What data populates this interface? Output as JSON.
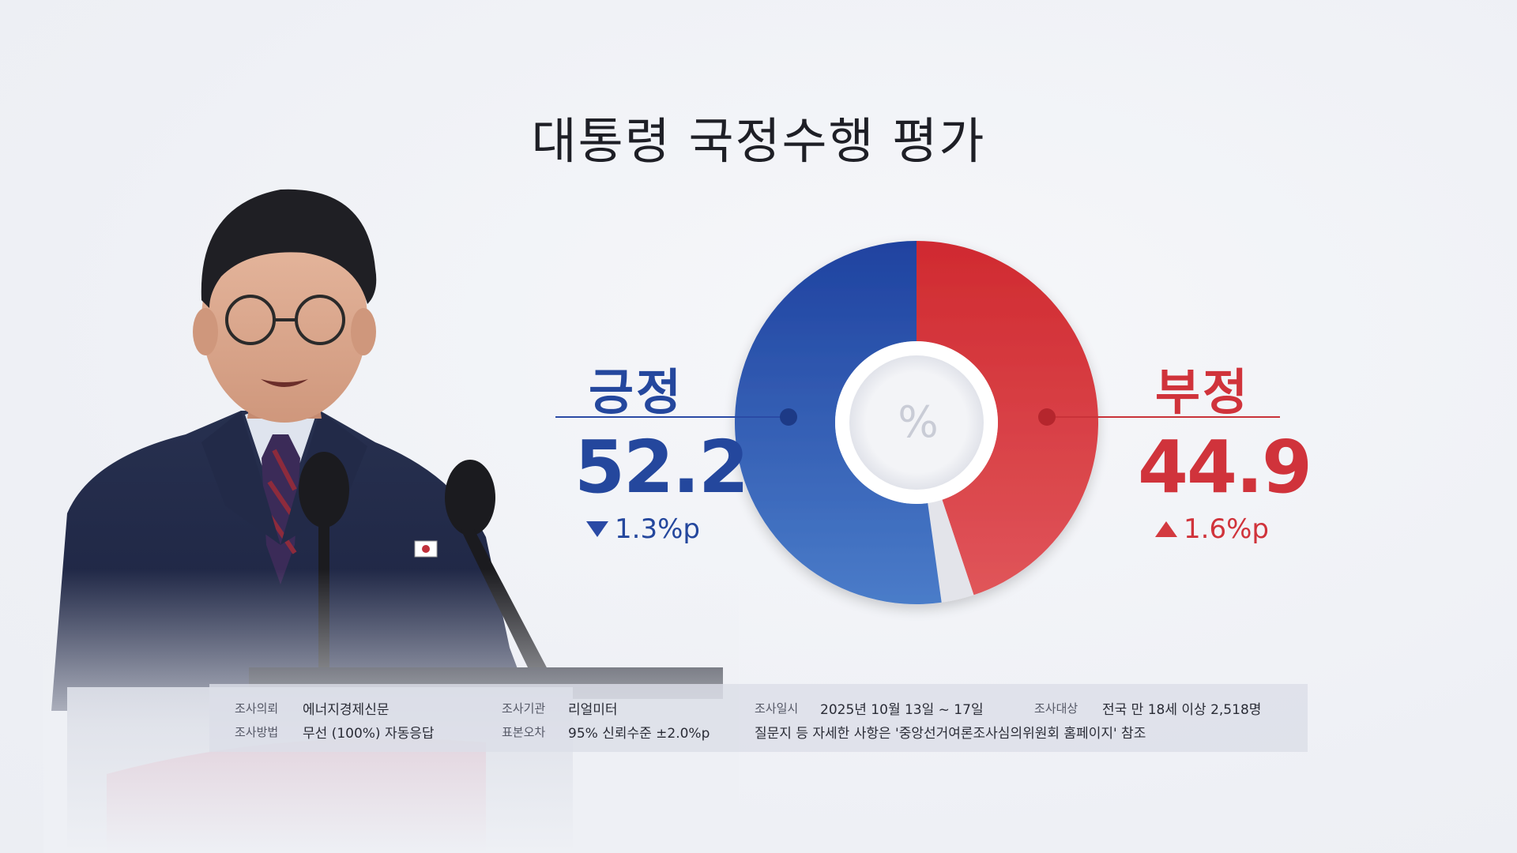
{
  "title": "대통령 국정수행 평가",
  "chart_data": {
    "type": "pie",
    "style": "donut",
    "title": "대통령 국정수행 평가",
    "center_label": "%",
    "slices": [
      {
        "name": "긍정",
        "value": 52.2,
        "change": "1.3%p",
        "direction": "down",
        "color": "#2d52b0"
      },
      {
        "name": "부정",
        "value": 44.9,
        "change": "1.6%p",
        "direction": "up",
        "color": "#d8323a"
      },
      {
        "name": "",
        "value": 2.9,
        "color": "#e3e4ea"
      }
    ]
  },
  "labels": {
    "positive": {
      "word": "긍정",
      "value": "52.2",
      "change": "1.3%p"
    },
    "negative": {
      "word": "부정",
      "value": "44.9",
      "change": "1.6%p"
    }
  },
  "info": {
    "sponsor_key": "조사의뢰",
    "sponsor_val": "에너지경제신문",
    "agency_key": "조사기관",
    "agency_val": "리얼미터",
    "date_key": "조사일시",
    "date_val": "2025년 10월 13일 ~ 17일",
    "target_key": "조사대상",
    "target_val": "전국 만 18세 이상 2,518명",
    "method_key": "조사방법",
    "method_val": "무선 (100%) 자동응답",
    "error_key": "표본오차",
    "error_val": "95% 신뢰수준 ±2.0%p",
    "note": "질문지 등 자세한 사항은 '중앙선거여론조사심의위원회 홈페이지' 참조"
  },
  "colors": {
    "positive": "#24479d",
    "negative": "#d0333b",
    "background": "#f1f2f6"
  }
}
